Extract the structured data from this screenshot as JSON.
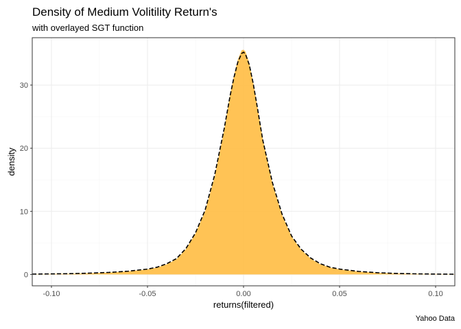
{
  "chart_data": {
    "type": "area",
    "title": "Density of Medium Volitility Return's",
    "subtitle": "with overlayed SGT function",
    "xlabel": "returns(filtered)",
    "ylabel": "density",
    "caption": "Yahoo Data",
    "xlim": [
      -0.11,
      0.11
    ],
    "ylim": [
      -1.8,
      37.5
    ],
    "x_ticks": [
      -0.1,
      -0.05,
      0.0,
      0.05,
      0.1
    ],
    "x_tick_labels": [
      "-0.10",
      "-0.05",
      "0.00",
      "0.05",
      "0.10"
    ],
    "y_ticks": [
      0,
      10,
      20,
      30
    ],
    "y_tick_labels": [
      "0",
      "10",
      "20",
      "30"
    ],
    "grid": true,
    "series": [
      {
        "kind": "density-area",
        "color": "#FFC04C",
        "x": [
          -0.11,
          -0.1,
          -0.09,
          -0.08,
          -0.07,
          -0.06,
          -0.05,
          -0.045,
          -0.04,
          -0.035,
          -0.03,
          -0.025,
          -0.02,
          -0.015,
          -0.01,
          -0.007,
          -0.005,
          -0.003,
          -0.001,
          0.0,
          0.001,
          0.003,
          0.005,
          0.007,
          0.01,
          0.015,
          0.02,
          0.025,
          0.03,
          0.035,
          0.04,
          0.045,
          0.05,
          0.06,
          0.07,
          0.08,
          0.09,
          0.1,
          0.11
        ],
        "y": [
          0.05,
          0.08,
          0.12,
          0.2,
          0.3,
          0.5,
          0.8,
          1.1,
          1.6,
          2.4,
          4.0,
          6.5,
          10.0,
          15.5,
          23.0,
          28.5,
          31.5,
          34.0,
          35.5,
          35.6,
          35.3,
          33.5,
          30.5,
          27.0,
          21.5,
          14.5,
          9.5,
          6.0,
          3.9,
          2.5,
          1.6,
          1.1,
          0.8,
          0.45,
          0.25,
          0.15,
          0.1,
          0.06,
          0.04
        ]
      },
      {
        "kind": "sgt-fit-line",
        "color": "#000000",
        "linetype": "dashed",
        "x": [
          -0.11,
          -0.1,
          -0.09,
          -0.08,
          -0.07,
          -0.06,
          -0.05,
          -0.045,
          -0.04,
          -0.035,
          -0.03,
          -0.025,
          -0.02,
          -0.015,
          -0.01,
          -0.007,
          -0.005,
          -0.003,
          -0.001,
          0.0,
          0.001,
          0.003,
          0.005,
          0.007,
          0.01,
          0.015,
          0.02,
          0.025,
          0.03,
          0.035,
          0.04,
          0.045,
          0.05,
          0.06,
          0.07,
          0.08,
          0.09,
          0.1,
          0.11
        ],
        "y": [
          0.06,
          0.09,
          0.13,
          0.21,
          0.32,
          0.52,
          0.85,
          1.15,
          1.7,
          2.5,
          4.1,
          6.6,
          10.2,
          15.8,
          23.2,
          28.3,
          31.2,
          33.6,
          35.0,
          35.2,
          34.9,
          33.2,
          30.3,
          26.8,
          21.3,
          14.6,
          9.6,
          6.1,
          4.0,
          2.6,
          1.7,
          1.15,
          0.85,
          0.48,
          0.27,
          0.16,
          0.1,
          0.06,
          0.04
        ]
      }
    ]
  }
}
